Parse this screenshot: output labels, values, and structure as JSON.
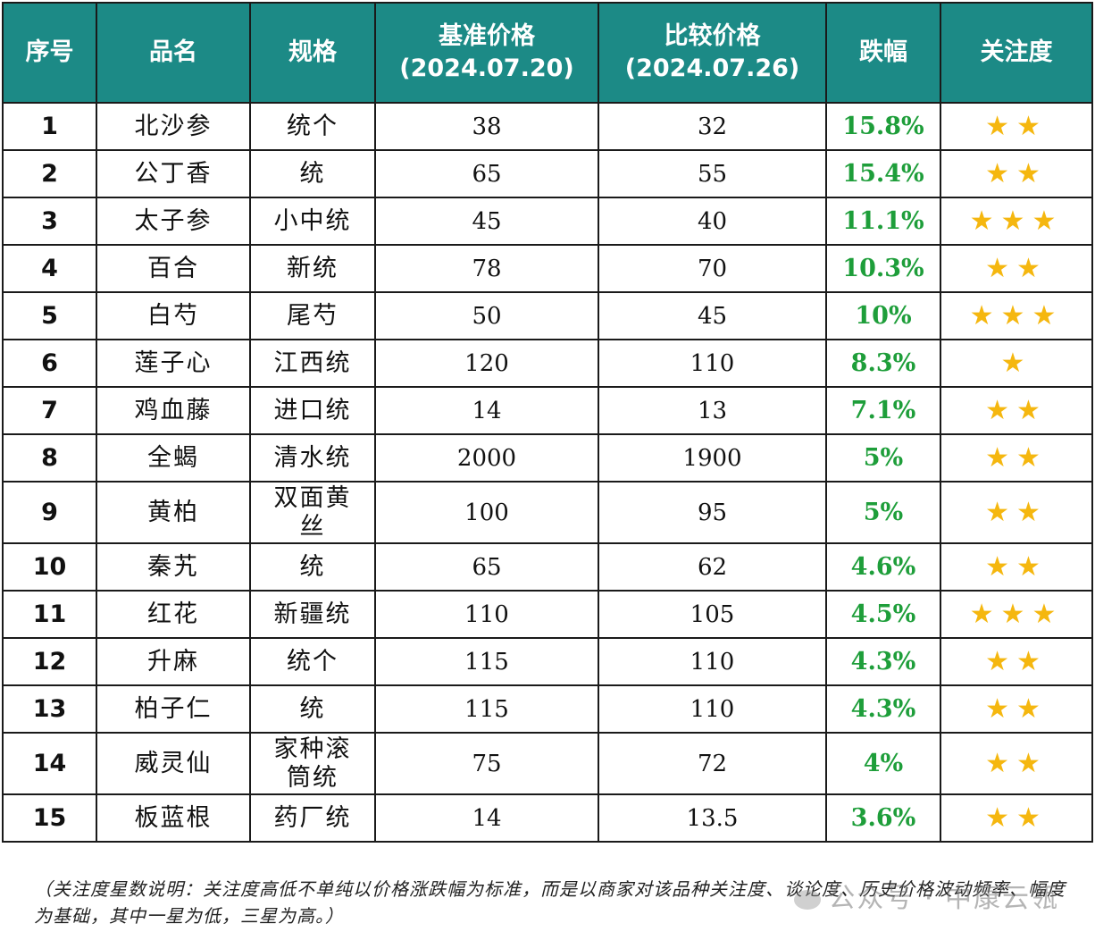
{
  "table": {
    "headers": {
      "no": "序号",
      "name": "品名",
      "spec": "规格",
      "base_price": "基准价格",
      "base_date": "(2024.07.20)",
      "compare_price": "比较价格",
      "compare_date": "(2024.07.26)",
      "drop": "跌幅",
      "attention": "关注度"
    },
    "rows": [
      {
        "no": "1",
        "name": "北沙参",
        "spec": "统个",
        "base": "38",
        "compare": "32",
        "drop": "15.8%",
        "stars": "★★",
        "attention_level": 2
      },
      {
        "no": "2",
        "name": "公丁香",
        "spec": "统",
        "base": "65",
        "compare": "55",
        "drop": "15.4%",
        "stars": "★★",
        "attention_level": 2
      },
      {
        "no": "3",
        "name": "太子参",
        "spec": "小中统",
        "base": "45",
        "compare": "40",
        "drop": "11.1%",
        "stars": "★★★",
        "attention_level": 3
      },
      {
        "no": "4",
        "name": "百合",
        "spec": "新统",
        "base": "78",
        "compare": "70",
        "drop": "10.3%",
        "stars": "★★",
        "attention_level": 2
      },
      {
        "no": "5",
        "name": "白芍",
        "spec": "尾芍",
        "base": "50",
        "compare": "45",
        "drop": "10%",
        "stars": "★★★",
        "attention_level": 3
      },
      {
        "no": "6",
        "name": "莲子心",
        "spec": "江西统",
        "base": "120",
        "compare": "110",
        "drop": "8.3%",
        "stars": "★",
        "attention_level": 1
      },
      {
        "no": "7",
        "name": "鸡血藤",
        "spec": "进口统",
        "base": "14",
        "compare": "13",
        "drop": "7.1%",
        "stars": "★★",
        "attention_level": 2
      },
      {
        "no": "8",
        "name": "全蝎",
        "spec": "清水统",
        "base": "2000",
        "compare": "1900",
        "drop": "5%",
        "stars": "★★",
        "attention_level": 2
      },
      {
        "no": "9",
        "name": "黄柏",
        "spec": "双面黄丝",
        "base": "100",
        "compare": "95",
        "drop": "5%",
        "stars": "★★",
        "attention_level": 2
      },
      {
        "no": "10",
        "name": "秦艽",
        "spec": "统",
        "base": "65",
        "compare": "62",
        "drop": "4.6%",
        "stars": "★★",
        "attention_level": 2
      },
      {
        "no": "11",
        "name": "红花",
        "spec": "新疆统",
        "base": "110",
        "compare": "105",
        "drop": "4.5%",
        "stars": "★★★",
        "attention_level": 3
      },
      {
        "no": "12",
        "name": "升麻",
        "spec": "统个",
        "base": "115",
        "compare": "110",
        "drop": "4.3%",
        "stars": "★★",
        "attention_level": 2
      },
      {
        "no": "13",
        "name": "柏子仁",
        "spec": "统",
        "base": "115",
        "compare": "110",
        "drop": "4.3%",
        "stars": "★★",
        "attention_level": 2
      },
      {
        "no": "14",
        "name": "威灵仙",
        "spec": "家种滚筒统",
        "base": "75",
        "compare": "72",
        "drop": "4%",
        "stars": "★★",
        "attention_level": 2
      },
      {
        "no": "15",
        "name": "板蓝根",
        "spec": "药厂统",
        "base": "14",
        "compare": "13.5",
        "drop": "3.6%",
        "stars": "★★",
        "attention_level": 2
      }
    ]
  },
  "footnote": "（关注度星数说明：关注度高低不单纯以价格涨跌幅为标准，而是以商家对该品种关注度、谈论度、历史价格波动频率、幅度为基础，其中一星为低，三星为高。）",
  "watermark": "公众号 · 中康云瓴",
  "colors": {
    "header_bg": "#1c8a86",
    "header_text": "#ffffff",
    "drop_text": "#1e9e3a",
    "star": "#f5b70f",
    "border": "#1a1a1a"
  }
}
